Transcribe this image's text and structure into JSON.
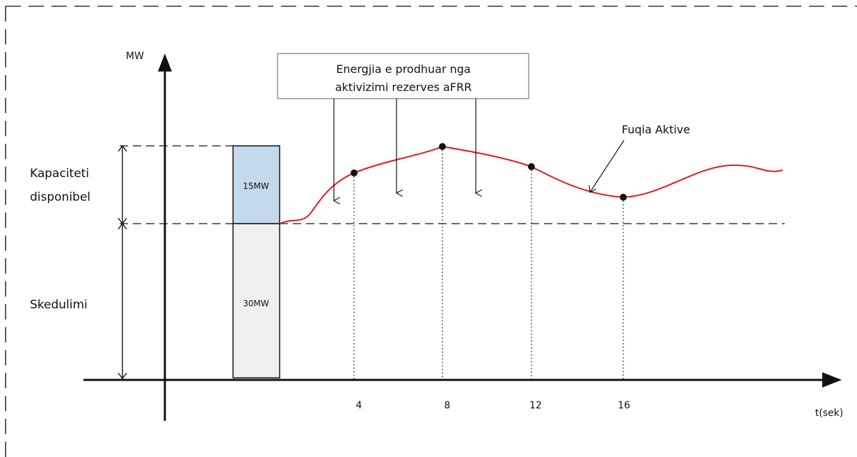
{
  "diagram": {
    "y_axis_label": "MW",
    "x_axis_label": "t(sek)",
    "left_labels": {
      "capacity_line1": "Kapaciteti",
      "capacity_line2": "disponibel",
      "schedule": "Skedulimi"
    },
    "bar": {
      "top_value": "15MW",
      "bottom_value": "30MW",
      "top_color": "#c5d9ec",
      "bottom_color": "#efefef"
    },
    "callout": {
      "line1": "Energjia e prodhuar nga",
      "line2": "aktivizimi rezerves aFRR"
    },
    "curve_label": "Fuqia Aktive",
    "curve_color": "#e0191b",
    "x_ticks": [
      "4",
      "8",
      "12",
      "16"
    ]
  }
}
